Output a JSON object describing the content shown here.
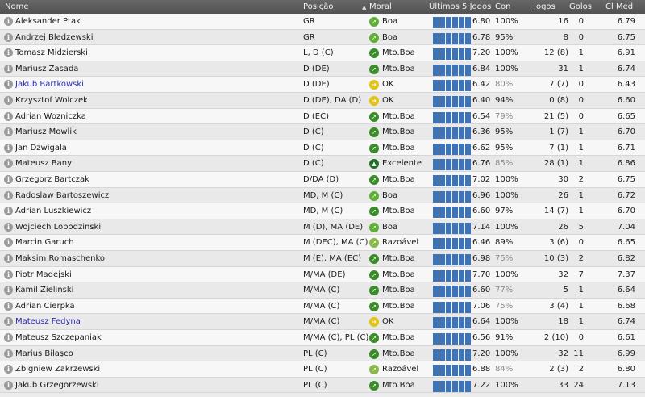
{
  "headers": {
    "name": "Nome",
    "position": "Posição",
    "morale": "Moral",
    "last5": "Últimos 5 Jogos",
    "condition": "Con",
    "apps": "Jogos",
    "goals": "Golos",
    "avg_rating": "Cl Med"
  },
  "colors": {
    "bar": "#3f73b8",
    "morale_boa": "#5fae3a",
    "morale_mto_boa": "#3c8b2b",
    "morale_ok": "#e1c219",
    "morale_excelente": "#1f6e2a",
    "morale_razoavel": "#8bb84a",
    "link": "#2b2bb5"
  },
  "players": [
    {
      "name": "Aleksander Ptak",
      "link": false,
      "position": "GR",
      "morale": "Boa",
      "morale_icon": "arrow-up-right-icon",
      "form": [
        0.7,
        0.7,
        0.7,
        0.7,
        0.7,
        0.7
      ],
      "rating": "6.80",
      "condition": "100%",
      "cond_dim": false,
      "apps": "16",
      "goals": "0",
      "avg": "6.79"
    },
    {
      "name": "Andrzej Bledzewski",
      "link": false,
      "position": "GR",
      "morale": "Boa",
      "morale_icon": "arrow-up-right-icon",
      "form": [
        0.7,
        0.7,
        0.7,
        0.7,
        0.7,
        0.7
      ],
      "rating": "6.78",
      "condition": "95%",
      "cond_dim": false,
      "apps": "8",
      "goals": "0",
      "avg": "6.75"
    },
    {
      "name": "Tomasz Midzierski",
      "link": false,
      "position": "L, D (C)",
      "morale": "Mto.Boa",
      "morale_icon": "arrow-up-right-icon",
      "form": [
        0.7,
        0.7,
        0.7,
        0.7,
        0.7,
        0.7
      ],
      "rating": "7.20",
      "condition": "100%",
      "cond_dim": false,
      "apps": "12 (8)",
      "goals": "1",
      "avg": "6.91"
    },
    {
      "name": "Mariusz Zasada",
      "link": false,
      "position": "D (DE)",
      "morale": "Mto.Boa",
      "morale_icon": "arrow-up-right-icon",
      "form": [
        0.7,
        0.7,
        0.7,
        0.7,
        0.7,
        0.7
      ],
      "rating": "6.84",
      "condition": "100%",
      "cond_dim": false,
      "apps": "31",
      "goals": "1",
      "avg": "6.74"
    },
    {
      "name": "Jakub Bartkowski",
      "link": true,
      "position": "D (DE)",
      "morale": "OK",
      "morale_icon": "arrow-right-icon",
      "form": [
        0.7,
        0.7,
        0.7,
        0.7,
        0.7,
        0.7
      ],
      "rating": "6.42",
      "condition": "80%",
      "cond_dim": true,
      "apps": "7 (7)",
      "goals": "0",
      "avg": "6.43"
    },
    {
      "name": "Krzysztof Wolczek",
      "link": false,
      "position": "D (DE), DA (D)",
      "morale": "OK",
      "morale_icon": "arrow-right-icon",
      "form": [
        0.7,
        0.7,
        0.7,
        0.7,
        0.7,
        0.7
      ],
      "rating": "6.40",
      "condition": "94%",
      "cond_dim": false,
      "apps": "0 (8)",
      "goals": "0",
      "avg": "6.60"
    },
    {
      "name": "Adrian Wozniczka",
      "link": false,
      "position": "D (EC)",
      "morale": "Mto.Boa",
      "morale_icon": "arrow-up-right-icon",
      "form": [
        0.7,
        0.7,
        0.7,
        0.7,
        0.7,
        0.7
      ],
      "rating": "6.54",
      "condition": "79%",
      "cond_dim": true,
      "apps": "21 (5)",
      "goals": "0",
      "avg": "6.65"
    },
    {
      "name": "Mariusz Mowlik",
      "link": false,
      "position": "D (C)",
      "morale": "Mto.Boa",
      "morale_icon": "arrow-up-right-icon",
      "form": [
        0.7,
        0.7,
        0.7,
        0.7,
        0.7,
        0.7
      ],
      "rating": "6.36",
      "condition": "95%",
      "cond_dim": false,
      "apps": "1 (7)",
      "goals": "1",
      "avg": "6.70"
    },
    {
      "name": "Jan Dzwigala",
      "link": false,
      "position": "D (C)",
      "morale": "Mto.Boa",
      "morale_icon": "arrow-up-right-icon",
      "form": [
        0.7,
        0.7,
        0.7,
        0.7,
        0.7,
        0.7
      ],
      "rating": "6.62",
      "condition": "95%",
      "cond_dim": false,
      "apps": "7 (1)",
      "goals": "1",
      "avg": "6.71"
    },
    {
      "name": "Mateusz Bany",
      "link": false,
      "position": "D (C)",
      "morale": "Excelente",
      "morale_icon": "arrow-up-icon",
      "form": [
        0.7,
        0.7,
        0.7,
        0.7,
        0.7,
        0.7
      ],
      "rating": "6.76",
      "condition": "85%",
      "cond_dim": true,
      "apps": "28 (1)",
      "goals": "1",
      "avg": "6.86"
    },
    {
      "name": "Grzegorz Bartczak",
      "link": false,
      "position": "D/DA (D)",
      "morale": "Mto.Boa",
      "morale_icon": "arrow-up-right-icon",
      "form": [
        0.7,
        0.7,
        0.7,
        0.7,
        0.7,
        0.7
      ],
      "rating": "7.02",
      "condition": "100%",
      "cond_dim": false,
      "apps": "30",
      "goals": "2",
      "avg": "6.75"
    },
    {
      "name": "Radoslaw Bartoszewicz",
      "link": false,
      "position": "MD, M (C)",
      "morale": "Boa",
      "morale_icon": "arrow-up-right-icon",
      "form": [
        0.7,
        0.7,
        0.7,
        0.7,
        0.7,
        0.7
      ],
      "rating": "6.96",
      "condition": "100%",
      "cond_dim": false,
      "apps": "26",
      "goals": "1",
      "avg": "6.72"
    },
    {
      "name": "Adrian Luszkiewicz",
      "link": false,
      "position": "MD, M (C)",
      "morale": "Mto.Boa",
      "morale_icon": "arrow-up-right-icon",
      "form": [
        0.7,
        0.7,
        0.7,
        0.7,
        0.7,
        0.7
      ],
      "rating": "6.60",
      "condition": "97%",
      "cond_dim": false,
      "apps": "14 (7)",
      "goals": "1",
      "avg": "6.70"
    },
    {
      "name": "Wojciech Lobodzinski",
      "link": false,
      "position": "M (D), MA (DE)",
      "morale": "Boa",
      "morale_icon": "arrow-up-right-icon",
      "form": [
        0.7,
        0.7,
        0.7,
        0.7,
        0.7,
        0.7
      ],
      "rating": "7.14",
      "condition": "100%",
      "cond_dim": false,
      "apps": "26",
      "goals": "5",
      "avg": "7.04"
    },
    {
      "name": "Marcin Garuch",
      "link": false,
      "position": "M (DEC), MA (C)",
      "morale": "Razoável",
      "morale_icon": "arrow-up-right-icon",
      "form": [
        0.7,
        0.7,
        0.7,
        0.7,
        0.7,
        0.7
      ],
      "rating": "6.46",
      "condition": "89%",
      "cond_dim": false,
      "apps": "3 (6)",
      "goals": "0",
      "avg": "6.65"
    },
    {
      "name": "Maksim Romaschenko",
      "link": false,
      "position": "M (E), MA (EC)",
      "morale": "Mto.Boa",
      "morale_icon": "arrow-up-right-icon",
      "form": [
        0.7,
        0.7,
        0.7,
        0.7,
        0.7,
        0.7
      ],
      "rating": "6.98",
      "condition": "75%",
      "cond_dim": true,
      "apps": "10 (3)",
      "goals": "2",
      "avg": "6.82"
    },
    {
      "name": "Piotr Madejski",
      "link": false,
      "position": "M/MA (DE)",
      "morale": "Mto.Boa",
      "morale_icon": "arrow-up-right-icon",
      "form": [
        0.7,
        0.7,
        0.7,
        0.7,
        0.7,
        0.7
      ],
      "rating": "7.70",
      "condition": "100%",
      "cond_dim": false,
      "apps": "32",
      "goals": "7",
      "avg": "7.37"
    },
    {
      "name": "Kamil Zielinski",
      "link": false,
      "position": "M/MA (C)",
      "morale": "Mto.Boa",
      "morale_icon": "arrow-up-right-icon",
      "form": [
        0.7,
        0.7,
        0.7,
        0.7,
        0.7,
        0.7
      ],
      "rating": "6.60",
      "condition": "77%",
      "cond_dim": true,
      "apps": "5",
      "goals": "1",
      "avg": "6.64"
    },
    {
      "name": "Adrian Cierpka",
      "link": false,
      "position": "M/MA (C)",
      "morale": "Mto.Boa",
      "morale_icon": "arrow-up-right-icon",
      "form": [
        0.7,
        0.7,
        0.7,
        0.7,
        0.7,
        0.7
      ],
      "rating": "7.06",
      "condition": "75%",
      "cond_dim": true,
      "apps": "3 (4)",
      "goals": "1",
      "avg": "6.68"
    },
    {
      "name": "Mateusz Fedyna",
      "link": true,
      "position": "M/MA (C)",
      "morale": "OK",
      "morale_icon": "arrow-right-icon",
      "form": [
        0.7,
        0.7,
        0.7,
        0.7,
        0.7,
        0.7
      ],
      "rating": "6.64",
      "condition": "100%",
      "cond_dim": false,
      "apps": "18",
      "goals": "1",
      "avg": "6.74"
    },
    {
      "name": "Mateusz Szczepaniak",
      "link": false,
      "position": "M/MA (C), PL (C)",
      "morale": "Mto.Boa",
      "morale_icon": "arrow-up-right-icon",
      "form": [
        0.7,
        0.7,
        0.7,
        0.7,
        0.7,
        0.7
      ],
      "rating": "6.56",
      "condition": "91%",
      "cond_dim": false,
      "apps": "2 (10)",
      "goals": "0",
      "avg": "6.61"
    },
    {
      "name": "Marius Bilaşco",
      "link": false,
      "position": "PL (C)",
      "morale": "Mto.Boa",
      "morale_icon": "arrow-up-right-icon",
      "form": [
        0.7,
        0.7,
        0.7,
        0.7,
        0.7,
        0.7
      ],
      "rating": "7.20",
      "condition": "100%",
      "cond_dim": false,
      "apps": "32",
      "goals": "11",
      "avg": "6.99"
    },
    {
      "name": "Zbigniew Zakrzewski",
      "link": false,
      "position": "PL (C)",
      "morale": "Razoável",
      "morale_icon": "arrow-up-right-icon",
      "form": [
        0.7,
        0.7,
        0.7,
        0.7,
        0.7,
        0.7
      ],
      "rating": "6.88",
      "condition": "84%",
      "cond_dim": true,
      "apps": "2 (3)",
      "goals": "2",
      "avg": "6.80"
    },
    {
      "name": "Jakub Grzegorzewski",
      "link": false,
      "position": "PL (C)",
      "morale": "Mto.Boa",
      "morale_icon": "arrow-up-right-icon",
      "form": [
        0.7,
        0.7,
        0.7,
        0.7,
        0.7,
        0.7
      ],
      "rating": "7.22",
      "condition": "100%",
      "cond_dim": false,
      "apps": "33",
      "goals": "24",
      "avg": "7.13"
    }
  ]
}
